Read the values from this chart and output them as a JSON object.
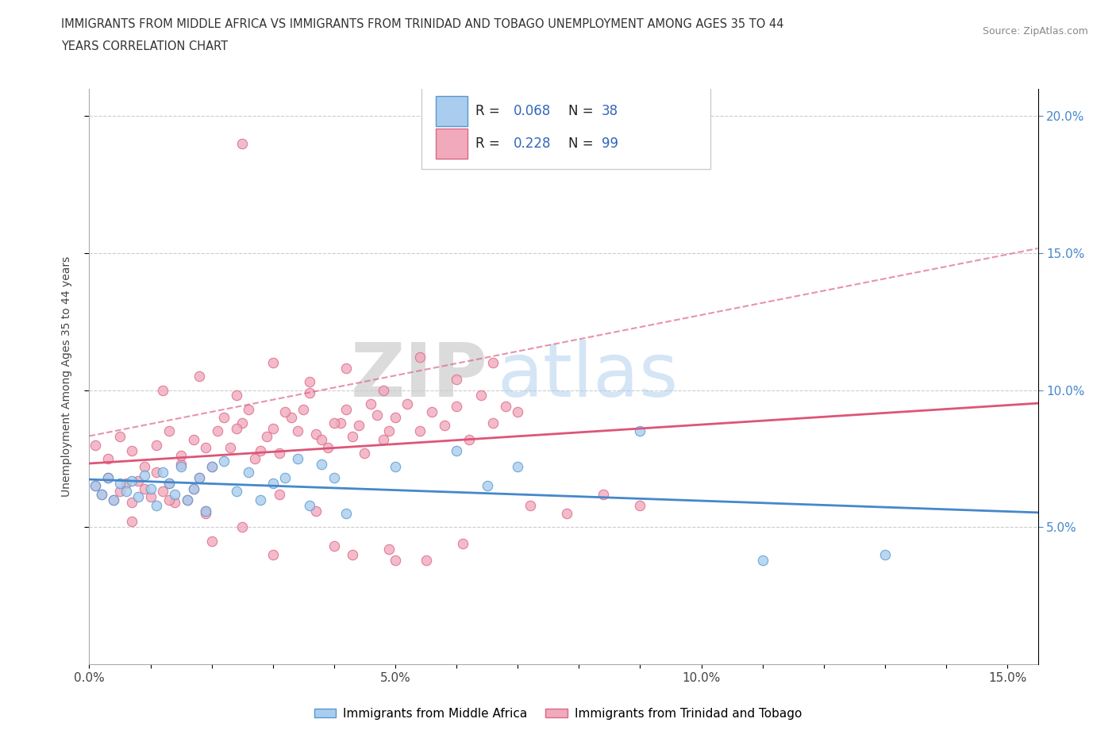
{
  "title_line1": "IMMIGRANTS FROM MIDDLE AFRICA VS IMMIGRANTS FROM TRINIDAD AND TOBAGO UNEMPLOYMENT AMONG AGES 35 TO 44",
  "title_line2": "YEARS CORRELATION CHART",
  "source_text": "Source: ZipAtlas.com",
  "ylabel": "Unemployment Among Ages 35 to 44 years",
  "xlim": [
    0.0,
    0.155
  ],
  "ylim": [
    0.0,
    0.21
  ],
  "xtick_labels": [
    "0.0%",
    "",
    "",
    "",
    "",
    "5.0%",
    "",
    "",
    "",
    "",
    "10.0%",
    "",
    "",
    "",
    "",
    "15.0%"
  ],
  "xtick_values": [
    0.0,
    0.01,
    0.02,
    0.03,
    0.04,
    0.05,
    0.06,
    0.07,
    0.08,
    0.09,
    0.1,
    0.11,
    0.12,
    0.13,
    0.14,
    0.15
  ],
  "ytick_vals": [
    0.05,
    0.1,
    0.15,
    0.2
  ],
  "right_ytick_labels": [
    "5.0%",
    "10.0%",
    "15.0%",
    "20.0%"
  ],
  "color_blue": "#aaccee",
  "color_pink": "#f0aabc",
  "edge_blue": "#5599cc",
  "edge_pink": "#dd6688",
  "line_blue": "#4488cc",
  "line_pink": "#dd5577",
  "watermark_zip": "ZIP",
  "watermark_atlas": "atlas",
  "legend_r1": "R = 0.068",
  "legend_n1": "N = 38",
  "legend_r2": "R = 0.228",
  "legend_n2": "N = 99",
  "blue_x": [
    0.001,
    0.002,
    0.003,
    0.004,
    0.005,
    0.006,
    0.007,
    0.008,
    0.009,
    0.01,
    0.011,
    0.012,
    0.013,
    0.014,
    0.015,
    0.016,
    0.017,
    0.018,
    0.019,
    0.02,
    0.022,
    0.024,
    0.026,
    0.028,
    0.03,
    0.032,
    0.034,
    0.036,
    0.038,
    0.04,
    0.042,
    0.05,
    0.06,
    0.065,
    0.07,
    0.09,
    0.11,
    0.13
  ],
  "blue_y": [
    0.065,
    0.062,
    0.068,
    0.06,
    0.066,
    0.063,
    0.067,
    0.061,
    0.069,
    0.064,
    0.058,
    0.07,
    0.066,
    0.062,
    0.072,
    0.06,
    0.064,
    0.068,
    0.056,
    0.072,
    0.074,
    0.063,
    0.07,
    0.06,
    0.066,
    0.068,
    0.075,
    0.058,
    0.073,
    0.068,
    0.055,
    0.072,
    0.078,
    0.065,
    0.072,
    0.085,
    0.038,
    0.04
  ],
  "pink_x": [
    0.001,
    0.002,
    0.003,
    0.004,
    0.005,
    0.006,
    0.007,
    0.008,
    0.009,
    0.01,
    0.011,
    0.012,
    0.013,
    0.014,
    0.015,
    0.016,
    0.017,
    0.018,
    0.019,
    0.02,
    0.001,
    0.003,
    0.005,
    0.007,
    0.009,
    0.011,
    0.013,
    0.015,
    0.017,
    0.019,
    0.021,
    0.023,
    0.025,
    0.027,
    0.029,
    0.031,
    0.033,
    0.035,
    0.037,
    0.039,
    0.041,
    0.043,
    0.045,
    0.047,
    0.049,
    0.022,
    0.024,
    0.026,
    0.028,
    0.03,
    0.032,
    0.034,
    0.036,
    0.038,
    0.04,
    0.042,
    0.044,
    0.046,
    0.048,
    0.05,
    0.052,
    0.054,
    0.056,
    0.058,
    0.06,
    0.062,
    0.064,
    0.066,
    0.068,
    0.07,
    0.012,
    0.018,
    0.024,
    0.03,
    0.036,
    0.042,
    0.048,
    0.054,
    0.06,
    0.066,
    0.072,
    0.078,
    0.084,
    0.09,
    0.007,
    0.013,
    0.019,
    0.025,
    0.031,
    0.037,
    0.043,
    0.049,
    0.055,
    0.061,
    0.02,
    0.03,
    0.04,
    0.05,
    0.025
  ],
  "pink_y": [
    0.065,
    0.062,
    0.068,
    0.06,
    0.063,
    0.066,
    0.059,
    0.067,
    0.064,
    0.061,
    0.07,
    0.063,
    0.066,
    0.059,
    0.073,
    0.06,
    0.064,
    0.068,
    0.056,
    0.072,
    0.08,
    0.075,
    0.083,
    0.078,
    0.072,
    0.08,
    0.085,
    0.076,
    0.082,
    0.079,
    0.085,
    0.079,
    0.088,
    0.075,
    0.083,
    0.077,
    0.09,
    0.093,
    0.084,
    0.079,
    0.088,
    0.083,
    0.077,
    0.091,
    0.085,
    0.09,
    0.086,
    0.093,
    0.078,
    0.086,
    0.092,
    0.085,
    0.099,
    0.082,
    0.088,
    0.093,
    0.087,
    0.095,
    0.082,
    0.09,
    0.095,
    0.085,
    0.092,
    0.087,
    0.094,
    0.082,
    0.098,
    0.088,
    0.094,
    0.092,
    0.1,
    0.105,
    0.098,
    0.11,
    0.103,
    0.108,
    0.1,
    0.112,
    0.104,
    0.11,
    0.058,
    0.055,
    0.062,
    0.058,
    0.052,
    0.06,
    0.055,
    0.05,
    0.062,
    0.056,
    0.04,
    0.042,
    0.038,
    0.044,
    0.045,
    0.04,
    0.043,
    0.038,
    0.19
  ]
}
